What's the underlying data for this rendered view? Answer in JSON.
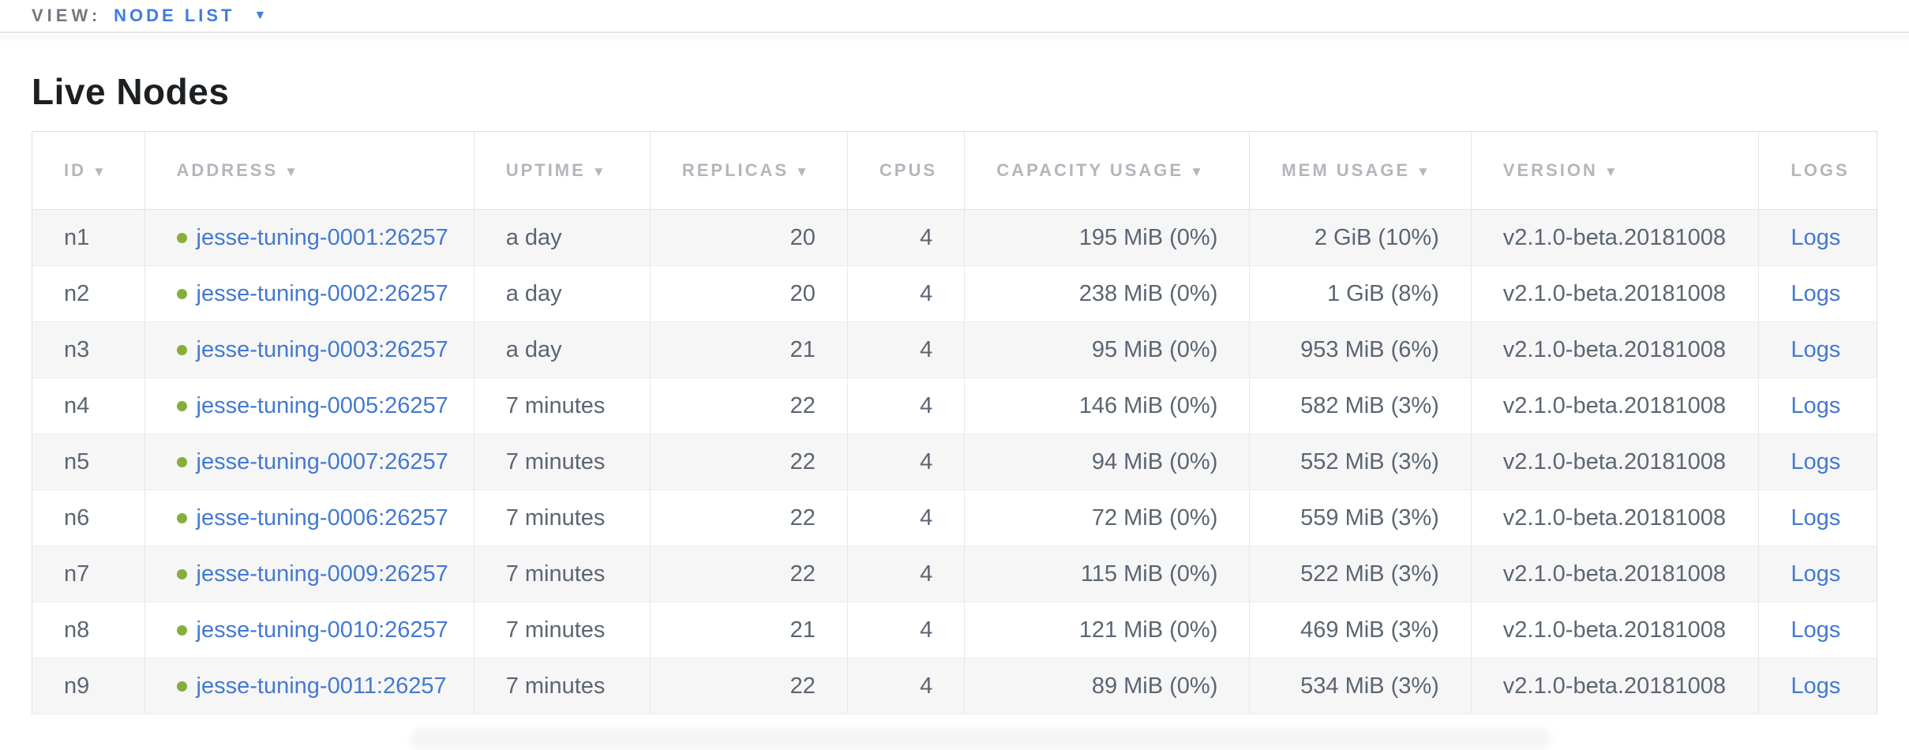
{
  "view_bar": {
    "label": "VIEW:",
    "selected": "NODE LIST",
    "dropdown_icon": "▼"
  },
  "page": {
    "title": "Live Nodes"
  },
  "table": {
    "sort_icon": "▼",
    "columns": [
      {
        "id": "id",
        "label": "ID",
        "sortable": true
      },
      {
        "id": "address",
        "label": "ADDRESS",
        "sortable": true
      },
      {
        "id": "uptime",
        "label": "UPTIME",
        "sortable": true
      },
      {
        "id": "replicas",
        "label": "REPLICAS",
        "sortable": true
      },
      {
        "id": "cpus",
        "label": "CPUS",
        "sortable": false
      },
      {
        "id": "capacity",
        "label": "CAPACITY USAGE",
        "sortable": true
      },
      {
        "id": "mem",
        "label": "MEM USAGE",
        "sortable": true
      },
      {
        "id": "version",
        "label": "VERSION",
        "sortable": true
      },
      {
        "id": "logs",
        "label": "LOGS",
        "sortable": false
      }
    ],
    "rows": [
      {
        "id": "n1",
        "status": "healthy",
        "address": "jesse-tuning-0001:26257",
        "uptime": "a day",
        "replicas": "20",
        "cpus": "4",
        "capacity": "195 MiB (0%)",
        "mem": "2 GiB (10%)",
        "version": "v2.1.0-beta.20181008",
        "logs_label": "Logs"
      },
      {
        "id": "n2",
        "status": "healthy",
        "address": "jesse-tuning-0002:26257",
        "uptime": "a day",
        "replicas": "20",
        "cpus": "4",
        "capacity": "238 MiB (0%)",
        "mem": "1 GiB (8%)",
        "version": "v2.1.0-beta.20181008",
        "logs_label": "Logs"
      },
      {
        "id": "n3",
        "status": "healthy",
        "address": "jesse-tuning-0003:26257",
        "uptime": "a day",
        "replicas": "21",
        "cpus": "4",
        "capacity": "95 MiB (0%)",
        "mem": "953 MiB (6%)",
        "version": "v2.1.0-beta.20181008",
        "logs_label": "Logs"
      },
      {
        "id": "n4",
        "status": "healthy",
        "address": "jesse-tuning-0005:26257",
        "uptime": "7 minutes",
        "replicas": "22",
        "cpus": "4",
        "capacity": "146 MiB (0%)",
        "mem": "582 MiB (3%)",
        "version": "v2.1.0-beta.20181008",
        "logs_label": "Logs"
      },
      {
        "id": "n5",
        "status": "healthy",
        "address": "jesse-tuning-0007:26257",
        "uptime": "7 minutes",
        "replicas": "22",
        "cpus": "4",
        "capacity": "94 MiB (0%)",
        "mem": "552 MiB (3%)",
        "version": "v2.1.0-beta.20181008",
        "logs_label": "Logs"
      },
      {
        "id": "n6",
        "status": "healthy",
        "address": "jesse-tuning-0006:26257",
        "uptime": "7 minutes",
        "replicas": "22",
        "cpus": "4",
        "capacity": "72 MiB (0%)",
        "mem": "559 MiB (3%)",
        "version": "v2.1.0-beta.20181008",
        "logs_label": "Logs"
      },
      {
        "id": "n7",
        "status": "healthy",
        "address": "jesse-tuning-0009:26257",
        "uptime": "7 minutes",
        "replicas": "22",
        "cpus": "4",
        "capacity": "115 MiB (0%)",
        "mem": "522 MiB (3%)",
        "version": "v2.1.0-beta.20181008",
        "logs_label": "Logs"
      },
      {
        "id": "n8",
        "status": "healthy",
        "address": "jesse-tuning-0010:26257",
        "uptime": "7 minutes",
        "replicas": "21",
        "cpus": "4",
        "capacity": "121 MiB (0%)",
        "mem": "469 MiB (3%)",
        "version": "v2.1.0-beta.20181008",
        "logs_label": "Logs"
      },
      {
        "id": "n9",
        "status": "healthy",
        "address": "jesse-tuning-0011:26257",
        "uptime": "7 minutes",
        "replicas": "22",
        "cpus": "4",
        "capacity": "89 MiB (0%)",
        "mem": "534 MiB (3%)",
        "version": "v2.1.0-beta.20181008",
        "logs_label": "Logs"
      }
    ]
  },
  "colors": {
    "accent_blue": "#3d7ce0",
    "link_blue": "#4379d2",
    "healthy_green": "#85ae3d",
    "header_gray": "#b3b6bb",
    "cell_slate": "#5b6573",
    "row_stripe": "#f6f6f6"
  }
}
